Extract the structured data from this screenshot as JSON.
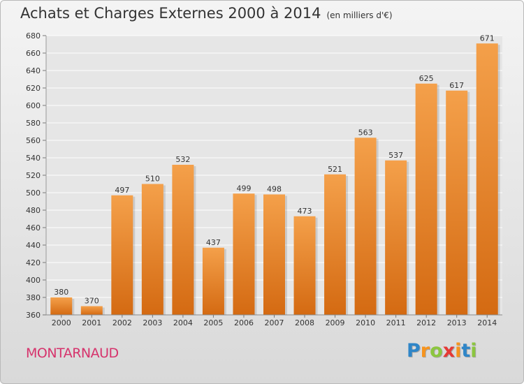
{
  "chart_data": {
    "type": "bar",
    "title": "Achats et Charges Externes 2000 à 2014",
    "subtitle": "(en milliers d'€)",
    "categories": [
      "2000",
      "2001",
      "2002",
      "2003",
      "2004",
      "2005",
      "2006",
      "2007",
      "2008",
      "2009",
      "2010",
      "2011",
      "2012",
      "2013",
      "2014"
    ],
    "values": [
      380,
      370,
      497,
      510,
      532,
      437,
      499,
      498,
      473,
      521,
      563,
      537,
      625,
      617,
      671
    ],
    "ylim": [
      360,
      680
    ],
    "yticks": [
      360,
      380,
      400,
      420,
      440,
      460,
      480,
      500,
      520,
      540,
      560,
      580,
      600,
      620,
      640,
      660,
      680
    ],
    "grid": true,
    "bar_color_top": "#f4a04a",
    "bar_color_bottom": "#d46a12"
  },
  "footer": {
    "commune": "MONTARNAUD",
    "brand_letters": [
      "P",
      "r",
      "o",
      "x",
      "i",
      "t",
      "i"
    ],
    "brand_colors": [
      "#2f86c8",
      "#f7941d",
      "#8cc63f",
      "#e53935",
      "#f7941d",
      "#2f86c8",
      "#8cc63f"
    ]
  }
}
